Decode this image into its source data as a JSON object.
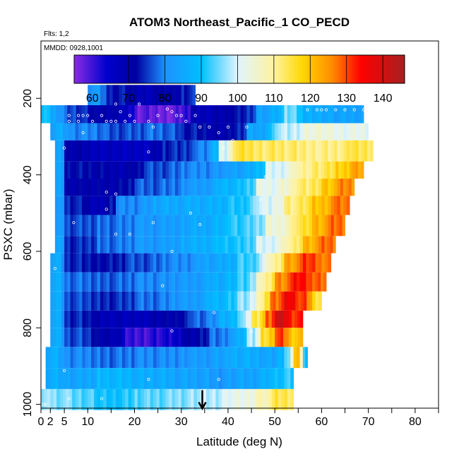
{
  "chart_data": {
    "type": "heatmap",
    "title": "ATOM3 Northeast_Pacific_1 CO_PECD",
    "flights_label": "Flts: 1,2",
    "dates_label": "MMDD: 0928,1001",
    "xlabel": "Latitude (deg N)",
    "ylabel": "PSXC (mbar)",
    "xlim": [
      0,
      85
    ],
    "ylim": [
      1010,
      50
    ],
    "x_ticks": [
      0,
      2,
      5,
      10,
      20,
      30,
      40,
      50,
      60,
      70,
      80
    ],
    "x_tick_labels": [
      "0",
      "2",
      "5",
      "10",
      "20",
      "30",
      "40",
      "50",
      "60",
      "70",
      "80"
    ],
    "x_minor_ticks": [
      15,
      25,
      35,
      45,
      55,
      65,
      75,
      85
    ],
    "y_ticks": [
      200,
      400,
      600,
      800,
      1000
    ],
    "y_tick_labels": [
      "200",
      "400",
      "600",
      "800",
      "1000"
    ],
    "colorbar": {
      "min": 55,
      "max": 146,
      "breaks": [
        70,
        80,
        90,
        100,
        110,
        120,
        130,
        140
      ],
      "labels": [
        "60",
        "70",
        "80",
        "90",
        "100",
        "110",
        "120",
        "130",
        "140"
      ],
      "label_values": [
        60,
        70,
        80,
        90,
        100,
        110,
        120,
        130,
        140
      ],
      "stops": [
        {
          "v": 55,
          "c": "#8a2be2"
        },
        {
          "v": 64,
          "c": "#0000cd"
        },
        {
          "v": 72,
          "c": "#0000a0"
        },
        {
          "v": 80,
          "c": "#1e90ff"
        },
        {
          "v": 90,
          "c": "#00bfff"
        },
        {
          "v": 100,
          "c": "#e0f4ff"
        },
        {
          "v": 110,
          "c": "#fff3a0"
        },
        {
          "v": 118,
          "c": "#ffd700"
        },
        {
          "v": 126,
          "c": "#ff8c00"
        },
        {
          "v": 134,
          "c": "#ff0000"
        },
        {
          "v": 146,
          "c": "#a52020"
        }
      ]
    },
    "arrow_latitude": 34.5,
    "arrow_pressure": 1000,
    "bands": [
      {
        "p_top": 165,
        "p_bot": 218,
        "segments": [
          [
            10,
            14,
            82
          ],
          [
            14,
            20,
            73
          ],
          [
            20,
            25,
            68
          ],
          [
            25,
            30,
            70
          ],
          [
            30,
            33,
            74
          ]
        ]
      },
      {
        "p_top": 218,
        "p_bot": 265,
        "segments": [
          [
            0,
            2,
            92
          ],
          [
            2,
            5,
            84
          ],
          [
            5,
            10,
            76
          ],
          [
            10,
            20,
            70
          ],
          [
            20,
            25,
            58
          ],
          [
            25,
            32,
            57
          ],
          [
            32,
            40,
            68
          ],
          [
            40,
            46,
            72
          ],
          [
            46,
            52,
            84
          ],
          [
            52,
            56,
            95
          ],
          [
            56,
            62,
            86
          ],
          [
            62,
            69,
            84
          ]
        ]
      },
      {
        "p_top": 265,
        "p_bot": 310,
        "segments": [
          [
            2,
            6,
            85
          ],
          [
            6,
            14,
            80
          ],
          [
            14,
            22,
            76
          ],
          [
            22,
            30,
            78
          ],
          [
            30,
            36,
            73
          ],
          [
            36,
            44,
            70
          ],
          [
            44,
            50,
            84
          ],
          [
            50,
            56,
            98
          ],
          [
            56,
            62,
            104
          ],
          [
            62,
            70,
            102
          ]
        ]
      },
      {
        "p_top": 310,
        "p_bot": 365,
        "segments": [
          [
            3,
            5,
            86
          ],
          [
            5,
            10,
            70
          ],
          [
            10,
            18,
            67
          ],
          [
            18,
            26,
            66
          ],
          [
            26,
            33,
            74
          ],
          [
            33,
            38,
            80
          ],
          [
            38,
            41,
            100
          ],
          [
            41,
            46,
            115
          ],
          [
            46,
            56,
            113
          ],
          [
            56,
            66,
            111
          ],
          [
            66,
            71,
            114
          ]
        ]
      },
      {
        "p_top": 365,
        "p_bot": 410,
        "segments": [
          [
            3,
            5,
            86
          ],
          [
            5,
            14,
            72
          ],
          [
            14,
            22,
            69
          ],
          [
            22,
            30,
            76
          ],
          [
            30,
            40,
            80
          ],
          [
            40,
            48,
            84
          ],
          [
            48,
            54,
            100
          ],
          [
            54,
            58,
            109
          ],
          [
            58,
            63,
            113
          ],
          [
            63,
            66,
            118
          ],
          [
            66,
            69,
            123
          ]
        ]
      },
      {
        "p_top": 410,
        "p_bot": 455,
        "segments": [
          [
            3,
            5,
            86
          ],
          [
            5,
            12,
            70
          ],
          [
            12,
            20,
            70
          ],
          [
            20,
            30,
            77
          ],
          [
            30,
            38,
            82
          ],
          [
            38,
            46,
            88
          ],
          [
            46,
            54,
            102
          ],
          [
            54,
            60,
            112
          ],
          [
            60,
            64,
            120
          ],
          [
            64,
            67,
            126
          ]
        ]
      },
      {
        "p_top": 455,
        "p_bot": 505,
        "segments": [
          [
            3,
            5,
            84
          ],
          [
            5,
            10,
            74
          ],
          [
            10,
            16,
            68
          ],
          [
            16,
            24,
            80
          ],
          [
            24,
            32,
            85
          ],
          [
            32,
            40,
            86
          ],
          [
            40,
            46,
            90
          ],
          [
            46,
            52,
            100
          ],
          [
            52,
            58,
            112
          ],
          [
            58,
            62,
            120
          ],
          [
            62,
            66,
            127
          ]
        ]
      },
      {
        "p_top": 505,
        "p_bot": 560,
        "segments": [
          [
            3,
            5,
            84
          ],
          [
            5,
            12,
            76
          ],
          [
            12,
            20,
            78
          ],
          [
            20,
            30,
            82
          ],
          [
            30,
            40,
            85
          ],
          [
            40,
            48,
            92
          ],
          [
            48,
            54,
            104
          ],
          [
            54,
            58,
            114
          ],
          [
            58,
            62,
            122
          ],
          [
            62,
            65,
            128
          ]
        ]
      },
      {
        "p_top": 560,
        "p_bot": 605,
        "segments": [
          [
            3,
            5,
            86
          ],
          [
            5,
            12,
            74
          ],
          [
            12,
            20,
            78
          ],
          [
            20,
            30,
            82
          ],
          [
            30,
            38,
            86
          ],
          [
            38,
            46,
            90
          ],
          [
            46,
            52,
            100
          ],
          [
            52,
            56,
            110
          ],
          [
            56,
            60,
            122
          ],
          [
            60,
            63,
            128
          ]
        ]
      },
      {
        "p_top": 605,
        "p_bot": 655,
        "segments": [
          [
            2,
            5,
            86
          ],
          [
            5,
            10,
            74
          ],
          [
            10,
            18,
            72
          ],
          [
            18,
            26,
            76
          ],
          [
            26,
            34,
            80
          ],
          [
            34,
            42,
            84
          ],
          [
            42,
            48,
            92
          ],
          [
            48,
            52,
            108
          ],
          [
            52,
            56,
            124
          ],
          [
            56,
            60,
            131
          ],
          [
            60,
            62,
            126
          ]
        ]
      },
      {
        "p_top": 655,
        "p_bot": 705,
        "segments": [
          [
            2,
            5,
            86
          ],
          [
            5,
            12,
            78
          ],
          [
            12,
            20,
            77
          ],
          [
            20,
            28,
            80
          ],
          [
            28,
            36,
            82
          ],
          [
            36,
            42,
            86
          ],
          [
            42,
            46,
            92
          ],
          [
            46,
            50,
            108
          ],
          [
            50,
            54,
            126
          ],
          [
            54,
            58,
            134
          ],
          [
            58,
            61,
            128
          ]
        ]
      },
      {
        "p_top": 705,
        "p_bot": 755,
        "segments": [
          [
            2,
            5,
            86
          ],
          [
            5,
            12,
            76
          ],
          [
            12,
            20,
            74
          ],
          [
            20,
            28,
            78
          ],
          [
            28,
            36,
            82
          ],
          [
            36,
            42,
            88
          ],
          [
            42,
            46,
            96
          ],
          [
            46,
            49,
            110
          ],
          [
            49,
            52,
            128
          ],
          [
            52,
            55,
            136
          ],
          [
            55,
            58,
            130
          ],
          [
            58,
            60,
            116
          ]
        ]
      },
      {
        "p_top": 755,
        "p_bot": 800,
        "segments": [
          [
            2,
            5,
            86
          ],
          [
            5,
            12,
            74
          ],
          [
            12,
            18,
            68
          ],
          [
            18,
            24,
            67
          ],
          [
            24,
            32,
            70
          ],
          [
            32,
            38,
            78
          ],
          [
            38,
            42,
            86
          ],
          [
            42,
            45,
            96
          ],
          [
            45,
            48,
            114
          ],
          [
            48,
            50,
            128
          ],
          [
            50,
            53,
            140
          ],
          [
            53,
            56,
            132
          ]
        ]
      },
      {
        "p_top": 800,
        "p_bot": 850,
        "segments": [
          [
            2,
            5,
            86
          ],
          [
            5,
            12,
            76
          ],
          [
            12,
            18,
            70
          ],
          [
            18,
            24,
            60
          ],
          [
            24,
            30,
            62
          ],
          [
            30,
            36,
            70
          ],
          [
            36,
            40,
            78
          ],
          [
            40,
            44,
            84
          ],
          [
            44,
            47,
            98
          ],
          [
            47,
            50,
            116
          ],
          [
            50,
            53,
            130
          ],
          [
            53,
            56,
            120
          ]
        ]
      },
      {
        "p_top": 850,
        "p_bot": 905,
        "segments": [
          [
            1,
            5,
            86
          ],
          [
            5,
            12,
            80
          ],
          [
            12,
            20,
            78
          ],
          [
            20,
            30,
            80
          ],
          [
            30,
            40,
            82
          ],
          [
            40,
            48,
            86
          ],
          [
            48,
            52,
            84
          ],
          [
            52,
            54,
            96
          ],
          [
            54,
            56,
            120
          ],
          [
            56,
            57,
            90
          ]
        ]
      },
      {
        "p_top": 905,
        "p_bot": 960,
        "segments": [
          [
            1,
            5,
            86
          ],
          [
            5,
            12,
            84
          ],
          [
            12,
            20,
            88
          ],
          [
            20,
            28,
            86
          ],
          [
            28,
            36,
            84
          ],
          [
            36,
            42,
            82
          ],
          [
            42,
            48,
            84
          ],
          [
            48,
            52,
            88
          ],
          [
            52,
            54,
            92
          ]
        ]
      },
      {
        "p_top": 960,
        "p_bot": 1015,
        "segments": [
          [
            0,
            2,
            98
          ],
          [
            2,
            6,
            96
          ],
          [
            6,
            12,
            94
          ],
          [
            12,
            20,
            90
          ],
          [
            20,
            28,
            94
          ],
          [
            28,
            34,
            96
          ],
          [
            34,
            40,
            98
          ],
          [
            40,
            46,
            102
          ],
          [
            46,
            50,
            108
          ],
          [
            50,
            54,
            114
          ]
        ]
      }
    ],
    "points": [
      [
        0.5,
        1000
      ],
      [
        1,
        1000
      ],
      [
        6,
        985
      ],
      [
        13,
        985
      ],
      [
        3,
        645
      ],
      [
        5,
        912
      ],
      [
        7,
        525
      ],
      [
        6,
        245
      ],
      [
        6,
        260
      ],
      [
        8,
        245
      ],
      [
        9,
        245
      ],
      [
        10,
        245
      ],
      [
        8,
        260
      ],
      [
        5,
        330
      ],
      [
        9,
        290
      ],
      [
        11,
        260
      ],
      [
        13,
        245
      ],
      [
        14,
        260
      ],
      [
        15,
        260
      ],
      [
        16,
        260
      ],
      [
        18,
        260
      ],
      [
        16,
        215
      ],
      [
        17,
        235
      ],
      [
        19,
        245
      ],
      [
        20,
        260
      ],
      [
        21,
        215
      ],
      [
        23,
        260
      ],
      [
        24,
        275
      ],
      [
        25,
        245
      ],
      [
        27,
        228
      ],
      [
        28,
        235
      ],
      [
        29,
        245
      ],
      [
        30,
        245
      ],
      [
        31,
        260
      ],
      [
        33,
        245
      ],
      [
        34,
        275
      ],
      [
        36,
        275
      ],
      [
        38,
        290
      ],
      [
        39,
        330
      ],
      [
        40,
        275
      ],
      [
        41,
        310
      ],
      [
        44,
        275
      ],
      [
        47,
        465
      ],
      [
        48,
        405
      ],
      [
        57,
        230
      ],
      [
        59,
        230
      ],
      [
        60,
        230
      ],
      [
        61,
        230
      ],
      [
        63,
        230
      ],
      [
        65,
        230
      ],
      [
        67,
        230
      ],
      [
        69,
        230
      ],
      [
        70,
        230
      ],
      [
        14,
        445
      ],
      [
        14,
        490
      ],
      [
        16,
        450
      ],
      [
        16,
        555
      ],
      [
        19,
        555
      ],
      [
        23,
        340
      ],
      [
        24,
        525
      ],
      [
        28,
        600
      ],
      [
        32,
        500
      ],
      [
        34,
        530
      ],
      [
        26,
        690
      ],
      [
        37,
        760
      ],
      [
        45,
        810
      ],
      [
        38,
        935
      ],
      [
        23,
        935
      ],
      [
        28,
        808
      ]
    ]
  }
}
